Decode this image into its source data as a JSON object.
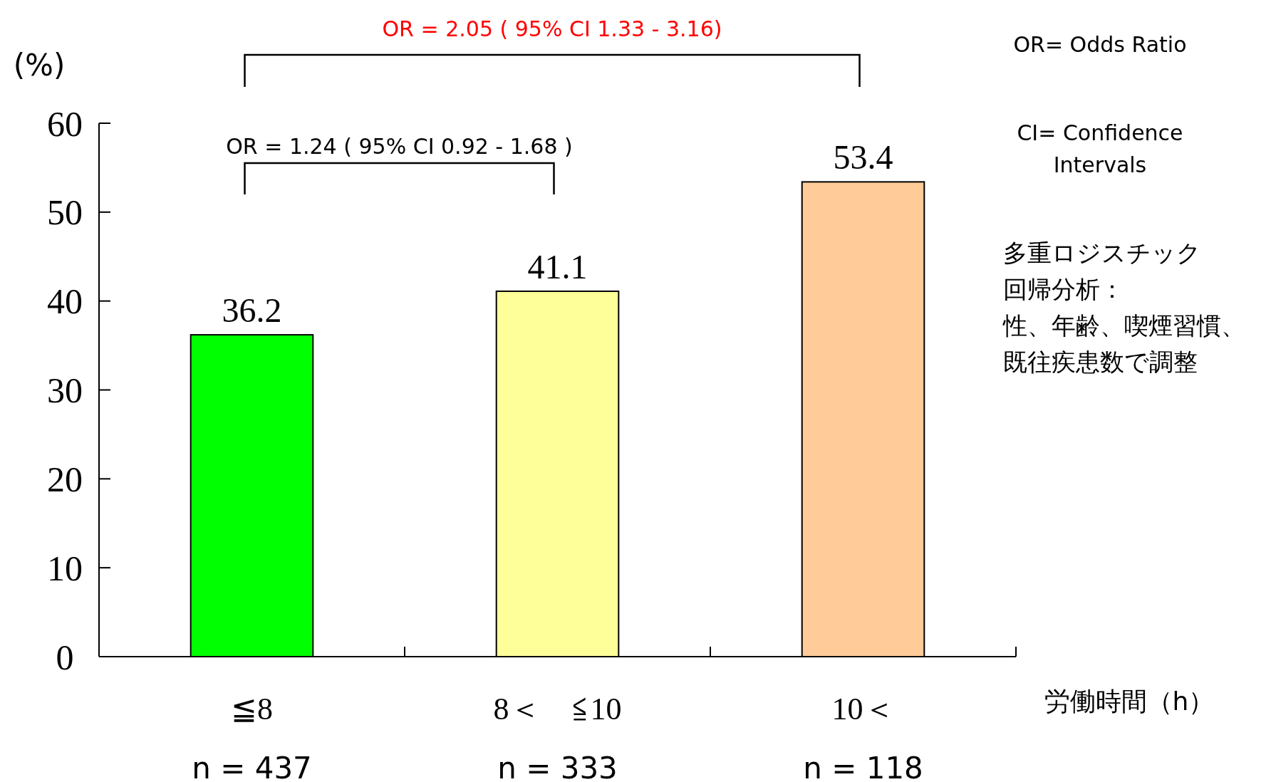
{
  "chart_data": {
    "type": "bar",
    "ylabel": "(%)",
    "xlabel": "労働時間（h）",
    "categories": [
      "≦8",
      "8＜　≦10",
      "10＜"
    ],
    "values": [
      36.2,
      41.1,
      53.4
    ],
    "colors": [
      "#00ff00",
      "#ffff99",
      "#ffcc99"
    ],
    "ylim": [
      0,
      60
    ],
    "yticks": [
      0,
      10,
      20,
      30,
      40,
      50,
      60
    ],
    "data_labels": true,
    "grid": false,
    "annotations": [
      "OR = 2.05 ( 95% CI  1.33 - 3.16)",
      "OR = 1.24 ( 95% CI  0.92  - 1.68 )",
      "OR= Odds Ratio",
      "CI= Confidence\nIntervals",
      "多重ロジスチック",
      "回帰分析：",
      "性、年齢、喫煙習慣、",
      "既往疾患数で調整",
      "n = 437",
      "n = 333",
      "n = 118"
    ]
  }
}
